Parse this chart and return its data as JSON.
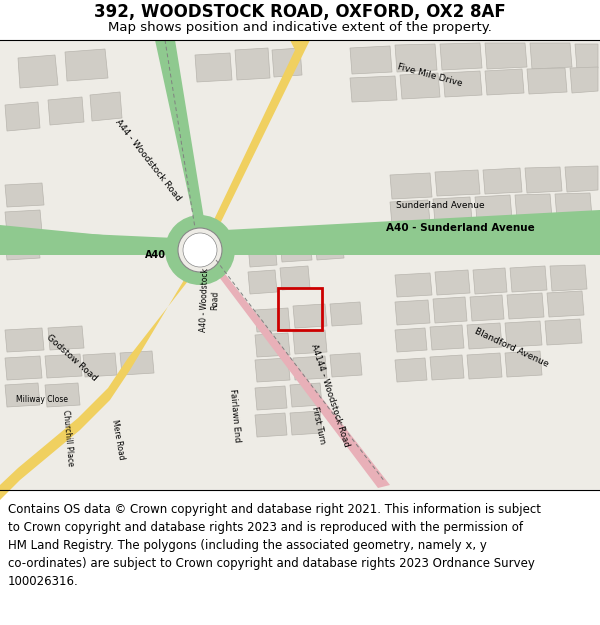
{
  "title": "392, WOODSTOCK ROAD, OXFORD, OX2 8AF",
  "subtitle": "Map shows position and indicative extent of the property.",
  "footer_line1": "Contains OS data © Crown copyright and database right 2021. This information is subject to Crown copyright and database rights 2023 and is reproduced with the permission of",
  "footer_line2": "HM Land Registry. The polygons (including the associated geometry, namely x, y",
  "footer_line3": "co-ordinates) are subject to Crown copyright and database rights 2023 Ordnance Survey",
  "footer_line4": "100026316.",
  "map_bg": "#eeece6",
  "road_green": "#8fc98f",
  "road_yellow": "#f0d060",
  "road_pink": "#e8b0b8",
  "building_color": "#d0cdc6",
  "building_outline": "#b8b5ae",
  "property_outline": "#cc0000",
  "title_fontsize": 12,
  "subtitle_fontsize": 9.5,
  "footer_fontsize": 8.5
}
